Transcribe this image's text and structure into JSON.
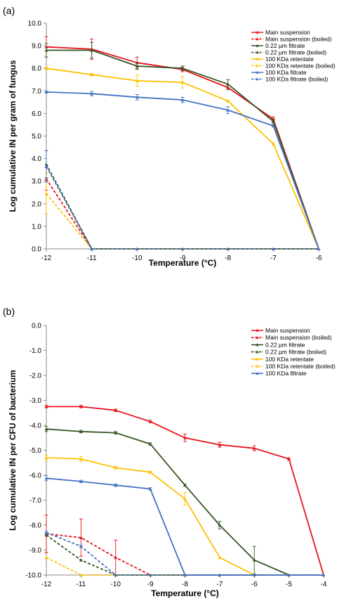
{
  "chart_data": [
    {
      "type": "line",
      "panel_label": "(a)",
      "xlabel": "Temperature (°C)",
      "ylabel": "Log cumulative IN per gram of fungus",
      "xlim": [
        -12,
        -6
      ],
      "ylim": [
        0,
        10
      ],
      "x_ticks": [
        "-12",
        "-11",
        "-10",
        "-9",
        "-8",
        "-7",
        "-6"
      ],
      "y_ticks": [
        "0.0",
        "1.0",
        "2.0",
        "3.0",
        "4.0",
        "5.0",
        "6.0",
        "7.0",
        "8.0",
        "9.0",
        "10.0"
      ],
      "grid": false,
      "legend_position": "top-right",
      "series": [
        {
          "name": "Main suspension",
          "color": "#e8121a",
          "dashed": false,
          "x": [
            -12,
            -11,
            -10,
            -9,
            -8,
            -7,
            -6
          ],
          "y": [
            8.95,
            8.85,
            8.25,
            7.95,
            7.15,
            5.75,
            0
          ],
          "err": [
            0.45,
            0.45,
            0.25,
            0.1,
            0.1,
            0.1,
            0
          ]
        },
        {
          "name": "Main suspension (boiled)",
          "color": "#e8121a",
          "dashed": true,
          "x": [
            -12,
            -11,
            -10,
            -9,
            -8,
            -7,
            -6
          ],
          "y": [
            3.1,
            0,
            0,
            0,
            0,
            0,
            0
          ],
          "err": [
            0.5,
            0,
            0,
            0,
            0,
            0,
            0
          ]
        },
        {
          "name": "0.22 µm filtrate",
          "color": "#375623",
          "dashed": false,
          "x": [
            -12,
            -11,
            -10,
            -9,
            -8,
            -7,
            -6
          ],
          "y": [
            8.8,
            8.8,
            8.1,
            8.0,
            7.3,
            5.65,
            0
          ],
          "err": [
            0.3,
            0.35,
            0.15,
            0.1,
            0.2,
            0.1,
            0
          ]
        },
        {
          "name": "0.22 µm filtrate (boiled)",
          "color": "#375623",
          "dashed": true,
          "x": [
            -12,
            -11,
            -10,
            -9,
            -8,
            -7,
            -6
          ],
          "y": [
            3.75,
            0,
            0,
            0,
            0,
            0,
            0
          ],
          "err": [
            0.6,
            0,
            0,
            0,
            0,
            0,
            0
          ]
        },
        {
          "name": "100 KDa retentate",
          "color": "#ffc000",
          "dashed": false,
          "x": [
            -12,
            -11,
            -10,
            -9,
            -8,
            -7,
            -6
          ],
          "y": [
            8.0,
            7.72,
            7.45,
            7.38,
            6.55,
            4.65,
            0
          ],
          "err": [
            0.05,
            0.05,
            0.25,
            0.25,
            0.05,
            0.05,
            0
          ]
        },
        {
          "name": "100 KDa retentate (boiled)",
          "color": "#ffc000",
          "dashed": true,
          "x": [
            -12,
            -11,
            -10,
            -9,
            -8,
            -7,
            -6
          ],
          "y": [
            2.45,
            0,
            0,
            0,
            0,
            0,
            0
          ],
          "err": [
            0.9,
            0,
            0,
            0,
            0,
            0,
            0
          ]
        },
        {
          "name": "100 KDa filtrate",
          "color": "#4472c4",
          "dashed": false,
          "x": [
            -12,
            -11,
            -10,
            -9,
            -8,
            -7,
            -6
          ],
          "y": [
            6.95,
            6.88,
            6.72,
            6.6,
            6.15,
            5.45,
            0
          ],
          "err": [
            0.05,
            0.1,
            0.12,
            0.12,
            0.15,
            0.05,
            0
          ]
        },
        {
          "name": "100 KDa filtrate (boiled)",
          "color": "#4472c4",
          "dashed": true,
          "x": [
            -12,
            -11,
            -10,
            -9,
            -8,
            -7,
            -6
          ],
          "y": [
            3.65,
            0,
            0,
            0,
            0,
            0,
            0
          ],
          "err": [
            0.7,
            0,
            0,
            0,
            0,
            0,
            0
          ]
        }
      ]
    },
    {
      "type": "line",
      "panel_label": "(b)",
      "xlabel": "Temperature (°C)",
      "ylabel": "Log cumulative IN per CFU of bacterium",
      "xlim": [
        -12,
        -4
      ],
      "ylim": [
        -10,
        0
      ],
      "x_ticks": [
        "-12",
        "-11",
        "-10",
        "-9",
        "-8",
        "-7",
        "-6",
        "-5",
        "-4"
      ],
      "y_ticks": [
        "0.0",
        "-1.0",
        "-2.0",
        "-3.0",
        "-4.0",
        "-5.0",
        "-6.0",
        "-7.0",
        "-8.0",
        "-9.0",
        "-10.0"
      ],
      "grid": false,
      "legend_position": "top-right",
      "series": [
        {
          "name": "Main suspension",
          "color": "#e8121a",
          "dashed": false,
          "x": [
            -12,
            -11,
            -10,
            -9,
            -8,
            -7,
            -6,
            -5,
            -4
          ],
          "y": [
            -3.25,
            -3.25,
            -3.4,
            -3.85,
            -4.5,
            -4.78,
            -4.92,
            -5.35,
            -10
          ],
          "err": [
            0.05,
            0.05,
            0.05,
            0.05,
            0.15,
            0.1,
            0.1,
            0.05,
            0
          ]
        },
        {
          "name": "Main suspension (boiled)",
          "color": "#e8121a",
          "dashed": true,
          "x": [
            -12,
            -11,
            -10,
            -9,
            -8,
            -7,
            -6,
            -5,
            -4
          ],
          "y": [
            -8.35,
            -8.5,
            -9.3,
            -10,
            -10,
            -10,
            -10,
            -10,
            -10
          ],
          "err": [
            0.75,
            0.75,
            0.7,
            0,
            0,
            0,
            0,
            0,
            0
          ]
        },
        {
          "name": "0.22 µm filtrate",
          "color": "#375623",
          "dashed": false,
          "x": [
            -12,
            -11,
            -10,
            -9,
            -8,
            -7,
            -6,
            -5,
            -4
          ],
          "y": [
            -4.15,
            -4.25,
            -4.3,
            -4.75,
            -6.4,
            -8.0,
            -9.4,
            -10,
            -10
          ],
          "err": [
            0.1,
            0.05,
            0.05,
            0.05,
            0.05,
            0.15,
            0.55,
            0,
            0
          ]
        },
        {
          "name": "0.22 µm filtrate (boiled)",
          "color": "#375623",
          "dashed": true,
          "x": [
            -12,
            -11,
            -10,
            -9,
            -8,
            -7,
            -6,
            -5,
            -4
          ],
          "y": [
            -8.4,
            -9.4,
            -10,
            -10,
            -10,
            -10,
            -10,
            -10,
            -10
          ],
          "err": [
            0,
            0,
            0,
            0,
            0,
            0,
            0,
            0,
            0
          ]
        },
        {
          "name": "100 KDa retentate",
          "color": "#ffc000",
          "dashed": false,
          "x": [
            -12,
            -11,
            -10,
            -9,
            -8,
            -7,
            -6,
            -5,
            -4
          ],
          "y": [
            -5.3,
            -5.35,
            -5.7,
            -5.88,
            -6.95,
            -9.3,
            -10,
            -10,
            -10
          ],
          "err": [
            0.1,
            0.1,
            0.05,
            0.05,
            0.25,
            0,
            0,
            0,
            0
          ]
        },
        {
          "name": "100 KDa retentate (boiled)",
          "color": "#ffc000",
          "dashed": true,
          "x": [
            -12,
            -11,
            -10,
            -9,
            -8,
            -7,
            -6,
            -5,
            -4
          ],
          "y": [
            -9.3,
            -10,
            -10,
            -10,
            -10,
            -10,
            -10,
            -10,
            -10
          ],
          "err": [
            0,
            0,
            0,
            0,
            0,
            0,
            0,
            0,
            0
          ]
        },
        {
          "name": "100 KDa filtrate",
          "color": "#4472c4",
          "dashed": false,
          "x": [
            -12,
            -11,
            -10,
            -9,
            -8,
            -7,
            -6,
            -5,
            -4
          ],
          "y": [
            -6.12,
            -6.25,
            -6.4,
            -6.55,
            -10,
            -10,
            -10,
            -10,
            -10
          ],
          "err": [
            0.1,
            0.05,
            0.05,
            0.05,
            0,
            0,
            0,
            0,
            0
          ]
        },
        {
          "name": "",
          "color": "#4472c4",
          "dashed": true,
          "in_legend": false,
          "x": [
            -12,
            -11,
            -10,
            -9,
            -8,
            -7,
            -6,
            -5,
            -4
          ],
          "y": [
            -8.3,
            -8.85,
            -10,
            -10,
            -10,
            -10,
            -10,
            -10,
            -10
          ],
          "err": [
            0.05,
            0.05,
            0,
            0,
            0,
            0,
            0,
            0,
            0
          ]
        }
      ]
    }
  ]
}
